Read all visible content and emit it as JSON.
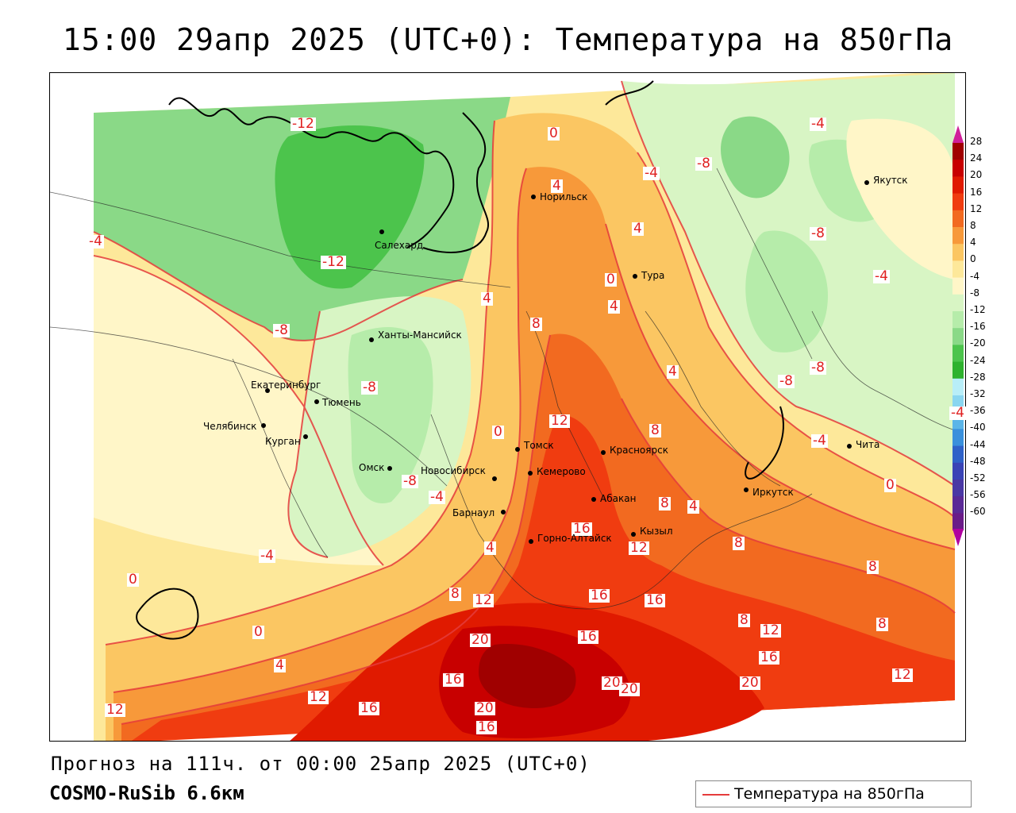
{
  "title": "15:00 29апр 2025 (UTC+0): Температура на 850гПа",
  "footer": {
    "forecast": "Прогноз на 111ч. от 00:00 25апр 2025 (UTC+0)",
    "model": "COSMO-RuSib 6.6км"
  },
  "legend": {
    "label": "Температура на 850гПа",
    "line_color": "#e53b3b"
  },
  "colorbar": {
    "ticks": [
      "28",
      "24",
      "20",
      "16",
      "12",
      "8",
      "4",
      "0",
      "-4",
      "-8",
      "-12",
      "-16",
      "-20",
      "-24",
      "-28",
      "-32",
      "-36",
      "-40",
      "-44",
      "-48",
      "-52",
      "-56",
      "-60"
    ],
    "colors": [
      "#a00000",
      "#c80000",
      "#e01a00",
      "#f03c10",
      "#f26a20",
      "#f7993a",
      "#fbc662",
      "#fde89a",
      "#fff6c8",
      "#d8f5c4",
      "#b6ecaa",
      "#8ad987",
      "#4cc44c",
      "#2eb22e",
      "#b8eef8",
      "#8ad6f0",
      "#5bb5e8",
      "#3a90dc",
      "#2f62c8",
      "#3a44b6",
      "#4a38a4",
      "#5a2a96",
      "#6a1c88"
    ]
  },
  "isotherm_labels": [
    {
      "text": "-12"
    },
    {
      "text": "-12"
    },
    {
      "text": "-8"
    },
    {
      "text": "-8"
    },
    {
      "text": "-8"
    },
    {
      "text": "-8"
    },
    {
      "text": "-8"
    },
    {
      "text": "-8"
    },
    {
      "text": "-4"
    },
    {
      "text": "-4"
    },
    {
      "text": "-4"
    },
    {
      "text": "-4"
    },
    {
      "text": "-4"
    },
    {
      "text": "-4"
    },
    {
      "text": "-4"
    },
    {
      "text": "0"
    },
    {
      "text": "0"
    },
    {
      "text": "0"
    },
    {
      "text": "0"
    },
    {
      "text": "0"
    },
    {
      "text": "0"
    },
    {
      "text": "4"
    },
    {
      "text": "4"
    },
    {
      "text": "4"
    },
    {
      "text": "4"
    },
    {
      "text": "4"
    },
    {
      "text": "4"
    },
    {
      "text": "4"
    },
    {
      "text": "4"
    },
    {
      "text": "8"
    },
    {
      "text": "8"
    },
    {
      "text": "8"
    },
    {
      "text": "8"
    },
    {
      "text": "8"
    },
    {
      "text": "8"
    },
    {
      "text": "8"
    },
    {
      "text": "8"
    },
    {
      "text": "12"
    },
    {
      "text": "12"
    },
    {
      "text": "12"
    },
    {
      "text": "12"
    },
    {
      "text": "12"
    },
    {
      "text": "12"
    },
    {
      "text": "12"
    },
    {
      "text": "16"
    },
    {
      "text": "16"
    },
    {
      "text": "16"
    },
    {
      "text": "16"
    },
    {
      "text": "16"
    },
    {
      "text": "16"
    },
    {
      "text": "16"
    },
    {
      "text": "16"
    },
    {
      "text": "20"
    },
    {
      "text": "20"
    },
    {
      "text": "20"
    },
    {
      "text": "20"
    },
    {
      "text": "20"
    },
    {
      "text": "-8"
    },
    {
      "text": "-4"
    }
  ],
  "cities": [
    {
      "name": "Норильск"
    },
    {
      "name": "Салехард"
    },
    {
      "name": "Тура"
    },
    {
      "name": "Якутск"
    },
    {
      "name": "Ханты-Мансийск"
    },
    {
      "name": "Екатеринбург"
    },
    {
      "name": "Тюмень"
    },
    {
      "name": "Челябинск"
    },
    {
      "name": "Курган"
    },
    {
      "name": "Омск"
    },
    {
      "name": "Новосибирск"
    },
    {
      "name": "Томск"
    },
    {
      "name": "Кемерово"
    },
    {
      "name": "Красноярск"
    },
    {
      "name": "Барнаул"
    },
    {
      "name": "Абакан"
    },
    {
      "name": "Горно-Алтайск"
    },
    {
      "name": "Кызыл"
    },
    {
      "name": "Иркутск"
    },
    {
      "name": "Чита"
    }
  ]
}
